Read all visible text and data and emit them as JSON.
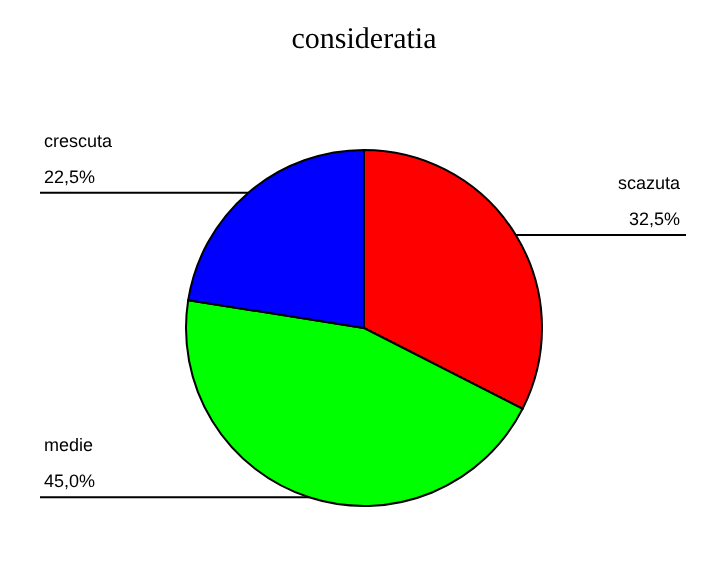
{
  "chart_data": {
    "type": "pie",
    "title": "consideratia",
    "categories": [
      "scazuta",
      "medie",
      "crescuta"
    ],
    "values": [
      32.5,
      45.0,
      22.5
    ],
    "colors": [
      "#ff0000",
      "#00ff00",
      "#0000ff"
    ],
    "value_labels": [
      "32,5%",
      "45,0%",
      "22,5%"
    ]
  }
}
